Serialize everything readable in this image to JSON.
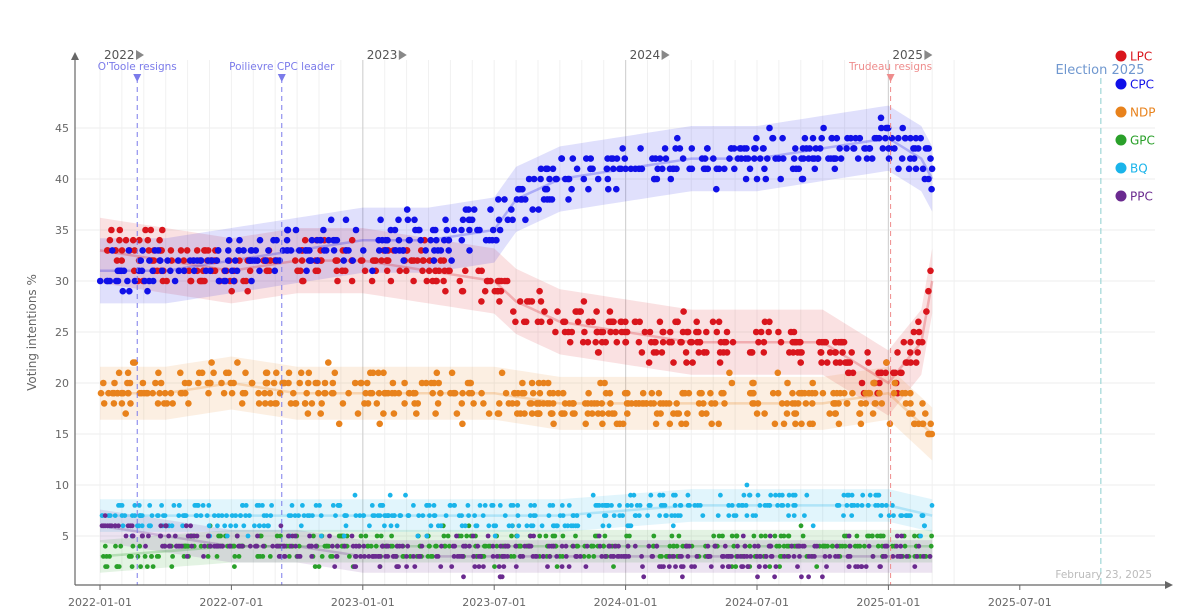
{
  "chart_data": {
    "type": "scatter",
    "title": "",
    "ylabel": "Voting intentions %",
    "xlabel": "",
    "ylim": [
      1,
      50
    ],
    "y_ticks": [
      5,
      10,
      15,
      20,
      25,
      30,
      35,
      40,
      45
    ],
    "x_tick_labels": [
      "2022-01-01",
      "2022-07-01",
      "2023-01-01",
      "2023-07-01",
      "2024-01-01",
      "2024-07-01",
      "2025-01-01",
      "2025-07-01"
    ],
    "year_labels": [
      "2022",
      "2023",
      "2024",
      "2025"
    ],
    "date_label": "February 23, 2025",
    "election_label": "Election 2025",
    "events": [
      {
        "label": "O'Toole resigns",
        "color": "#7b7bea",
        "month": 1.7
      },
      {
        "label": "Poilievre CPC leader",
        "color": "#7b7bea",
        "month": 8.3
      },
      {
        "label": "Trudeau resigns",
        "color": "#ee8c8c",
        "month": 36.1
      }
    ],
    "series": [
      {
        "name": "LPC",
        "color": "#d9151c",
        "trend": [
          [
            0,
            33
          ],
          [
            3,
            32
          ],
          [
            6,
            31
          ],
          [
            9,
            32
          ],
          [
            12,
            32
          ],
          [
            15,
            31
          ],
          [
            18,
            30
          ],
          [
            19,
            28
          ],
          [
            21,
            26
          ],
          [
            24,
            25
          ],
          [
            27,
            24
          ],
          [
            30,
            24
          ],
          [
            33,
            24
          ],
          [
            36,
            20
          ],
          [
            37.5,
            24
          ],
          [
            38,
            30
          ]
        ]
      },
      {
        "name": "CPC",
        "color": "#1010e8",
        "trend": [
          [
            0,
            31
          ],
          [
            3,
            31
          ],
          [
            6,
            32
          ],
          [
            9,
            33
          ],
          [
            12,
            34
          ],
          [
            15,
            34
          ],
          [
            18,
            35
          ],
          [
            19,
            38
          ],
          [
            21,
            40
          ],
          [
            24,
            41
          ],
          [
            27,
            42
          ],
          [
            30,
            42
          ],
          [
            33,
            43
          ],
          [
            36,
            44
          ],
          [
            37.5,
            42
          ],
          [
            38,
            40
          ]
        ]
      },
      {
        "name": "NDP",
        "color": "#e8821c",
        "trend": [
          [
            0,
            19
          ],
          [
            3,
            19
          ],
          [
            6,
            20
          ],
          [
            9,
            19
          ],
          [
            12,
            19
          ],
          [
            15,
            19
          ],
          [
            18,
            19
          ],
          [
            21,
            18
          ],
          [
            24,
            18
          ],
          [
            27,
            18
          ],
          [
            30,
            18
          ],
          [
            33,
            18
          ],
          [
            36,
            19
          ],
          [
            37.5,
            16
          ],
          [
            38,
            15
          ]
        ]
      },
      {
        "name": "GPC",
        "color": "#2aa02a",
        "trend": [
          [
            0,
            3
          ],
          [
            3,
            3.5
          ],
          [
            6,
            4
          ],
          [
            9,
            4
          ],
          [
            12,
            4
          ],
          [
            15,
            4
          ],
          [
            18,
            4
          ],
          [
            21,
            4
          ],
          [
            24,
            4
          ],
          [
            27,
            4
          ],
          [
            30,
            4
          ],
          [
            33,
            4
          ],
          [
            36,
            4
          ],
          [
            38,
            4
          ]
        ]
      },
      {
        "name": "BQ",
        "color": "#1ab4ea",
        "trend": [
          [
            0,
            7
          ],
          [
            3,
            7
          ],
          [
            6,
            7
          ],
          [
            9,
            7
          ],
          [
            12,
            7
          ],
          [
            15,
            7
          ],
          [
            18,
            7
          ],
          [
            21,
            7
          ],
          [
            24,
            7.5
          ],
          [
            27,
            8
          ],
          [
            30,
            8
          ],
          [
            33,
            8
          ],
          [
            36,
            8
          ],
          [
            38,
            7
          ]
        ]
      },
      {
        "name": "PPC",
        "color": "#6a2a8f",
        "trend": [
          [
            0,
            6
          ],
          [
            3,
            5
          ],
          [
            6,
            4
          ],
          [
            9,
            4
          ],
          [
            12,
            3
          ],
          [
            15,
            3
          ],
          [
            18,
            3
          ],
          [
            21,
            3
          ],
          [
            24,
            3
          ],
          [
            27,
            3
          ],
          [
            30,
            3
          ],
          [
            33,
            3
          ],
          [
            36,
            3
          ],
          [
            38,
            3
          ]
        ]
      }
    ]
  }
}
